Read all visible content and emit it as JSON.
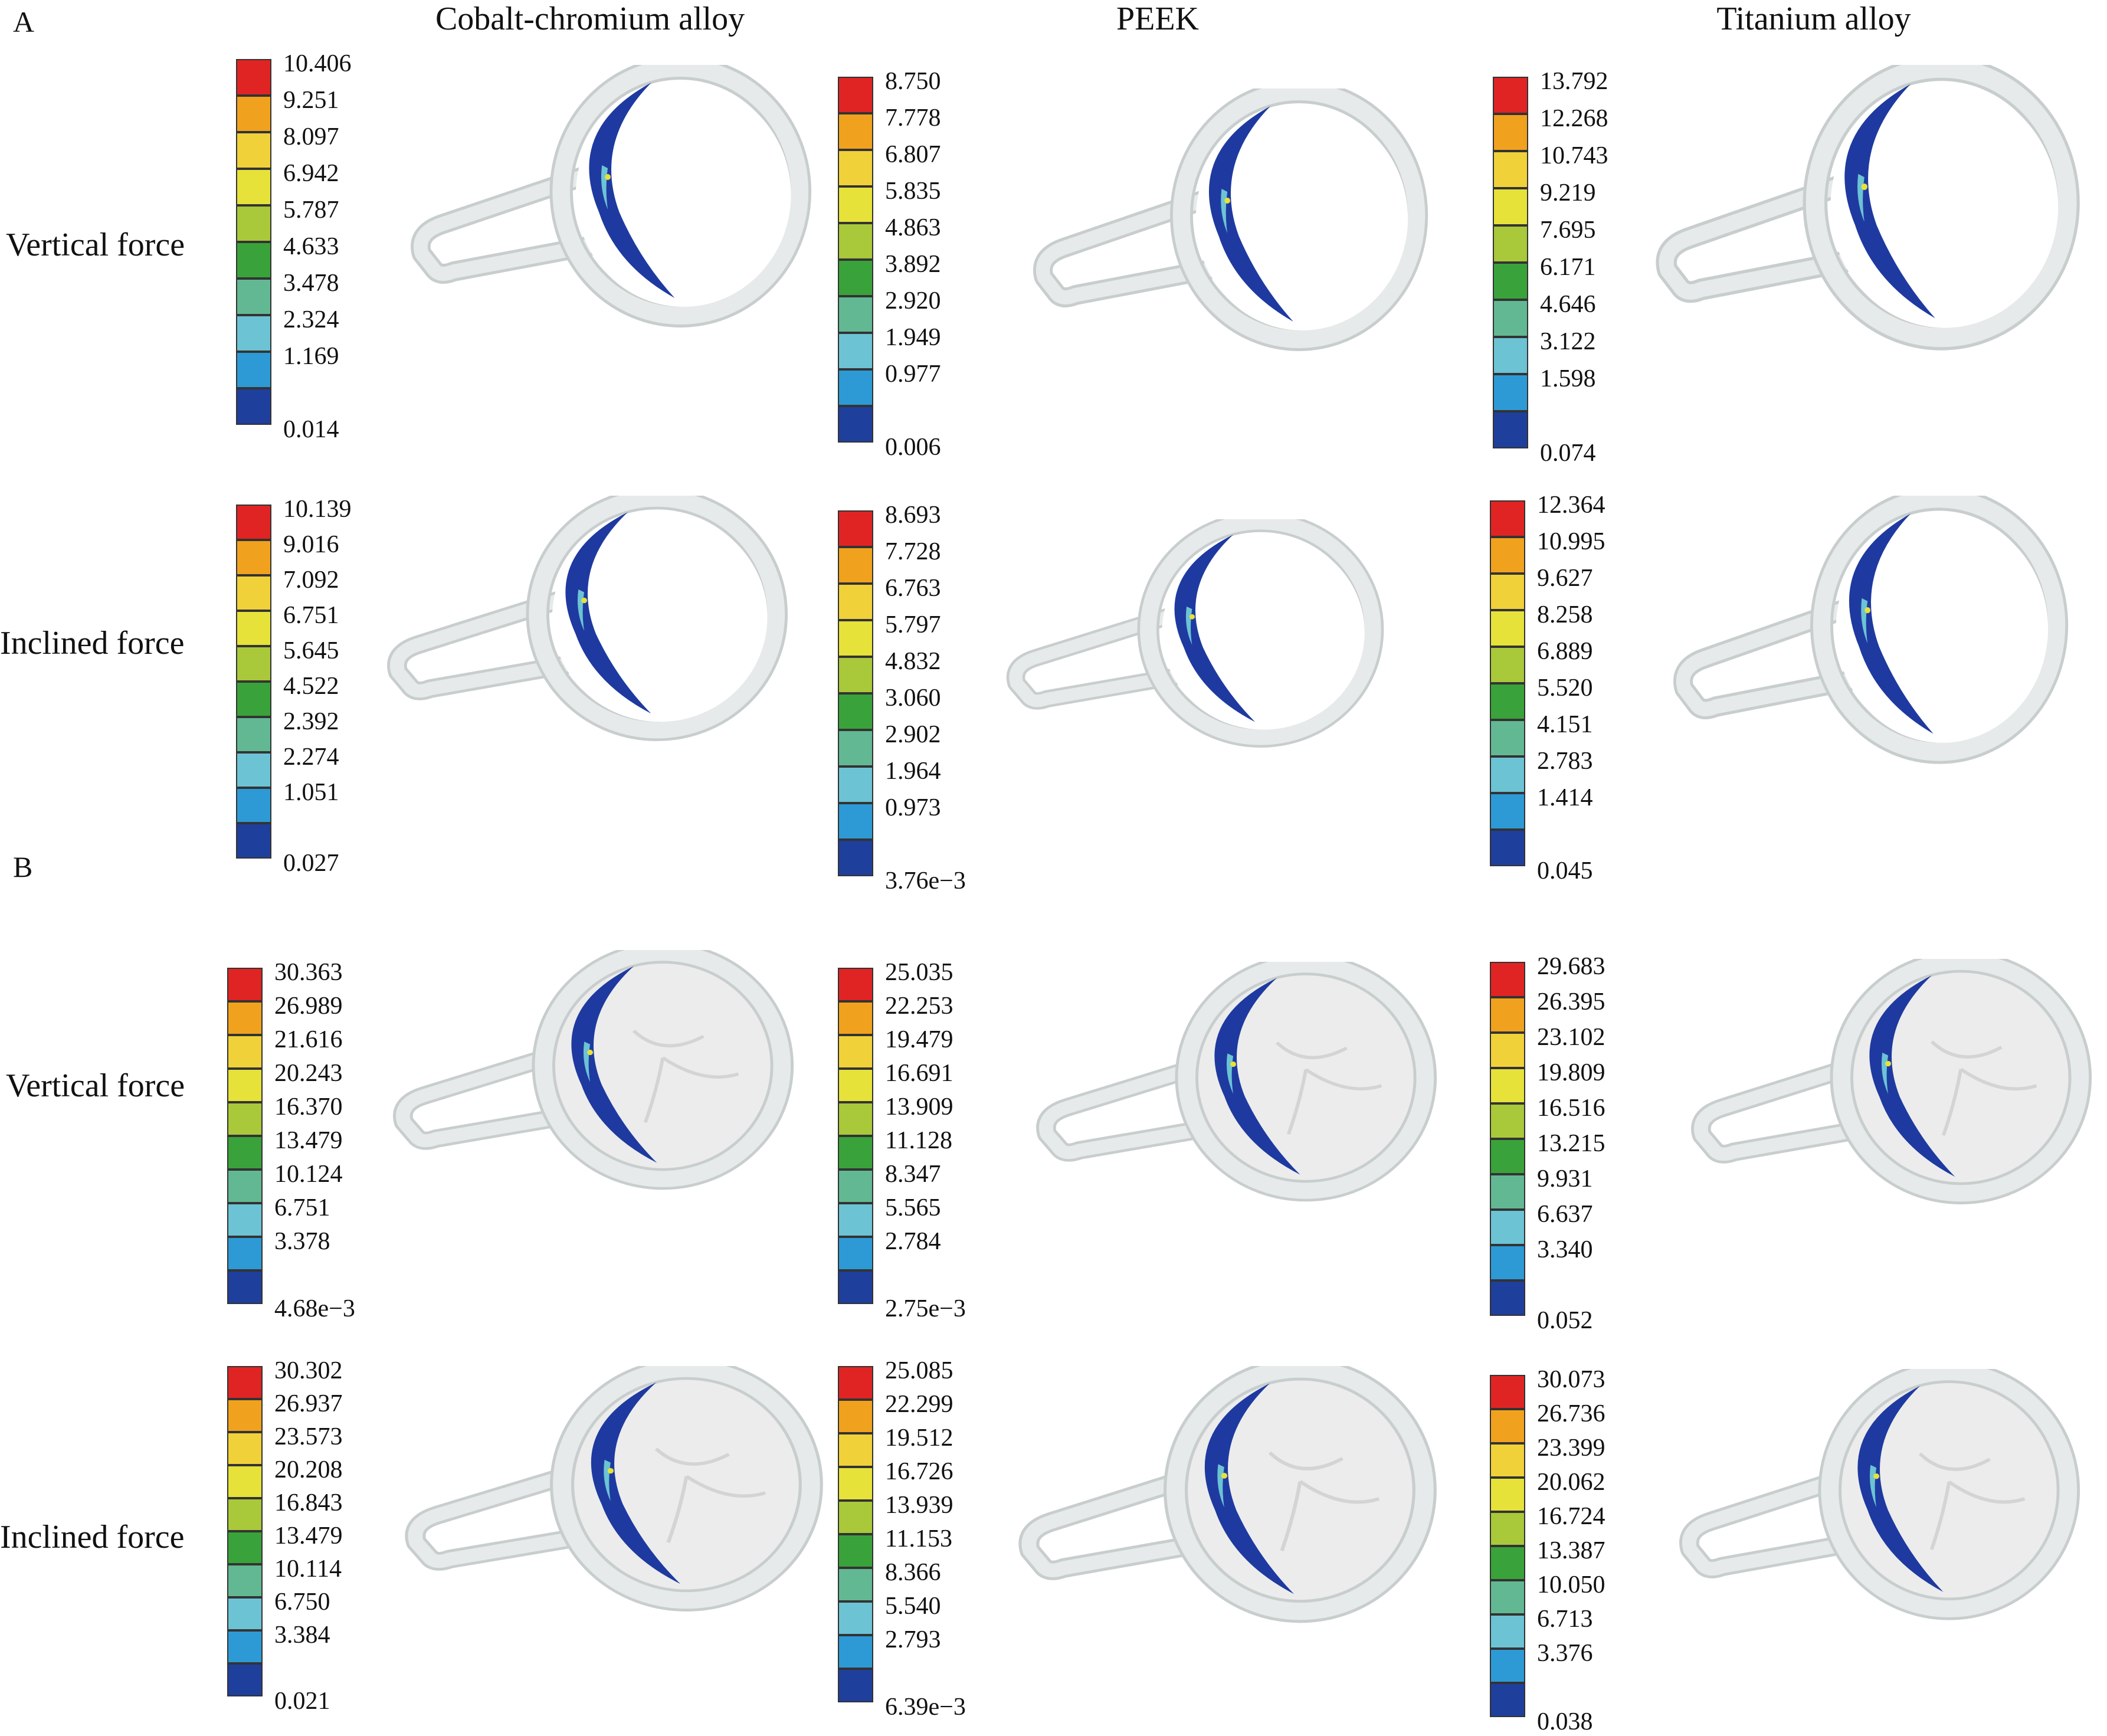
{
  "panels": [
    {
      "letter": "A"
    },
    {
      "letter": "B"
    }
  ],
  "columns": [
    "Cobalt-chromium alloy",
    "PEEK",
    "Titanium alloy"
  ],
  "row_labels": [
    "Vertical force",
    "Inclined force",
    "Vertical force",
    "Inclined force"
  ],
  "colors": {
    "scale": [
      "#1f3f9c",
      "#2d9ad6",
      "#6cc3d4",
      "#62b893",
      "#3aa23a",
      "#a9c83a",
      "#e6e23a",
      "#f0d13a",
      "#f0a21e",
      "#e02424"
    ],
    "ring": "#e6eaea",
    "ring_edge": "#c8cdcd",
    "crown": "#ececec",
    "stress_low": "#1e3aa0"
  },
  "legends": [
    [
      "10.406",
      "9.251",
      "8.097",
      "6.942",
      "5.787",
      "4.633",
      "3.478",
      "2.324",
      "1.169",
      "0.014"
    ],
    [
      "8.750",
      "7.778",
      "6.807",
      "5.835",
      "4.863",
      "3.892",
      "2.920",
      "1.949",
      "0.977",
      "0.006"
    ],
    [
      "13.792",
      "12.268",
      "10.743",
      "9.219",
      "7.695",
      "6.171",
      "4.646",
      "3.122",
      "1.598",
      "0.074"
    ],
    [
      "10.139",
      "9.016",
      "7.092",
      "6.751",
      "5.645",
      "4.522",
      "2.392",
      "2.274",
      "1.051",
      "0.027"
    ],
    [
      "8.693",
      "7.728",
      "6.763",
      "5.797",
      "4.832",
      "3.060",
      "2.902",
      "1.964",
      "0.973",
      "3.76e−3"
    ],
    [
      "12.364",
      "10.995",
      "9.627",
      "8.258",
      "6.889",
      "5.520",
      "4.151",
      "2.783",
      "1.414",
      "0.045"
    ],
    [
      "30.363",
      "26.989",
      "21.616",
      "20.243",
      "16.370",
      "13.479",
      "10.124",
      "6.751",
      "3.378",
      "4.68e−3"
    ],
    [
      "25.035",
      "22.253",
      "19.479",
      "16.691",
      "13.909",
      "11.128",
      "8.347",
      "5.565",
      "2.784",
      "2.75e−3"
    ],
    [
      "29.683",
      "26.395",
      "23.102",
      "19.809",
      "16.516",
      "13.215",
      "9.931",
      "6.637",
      "3.340",
      "0.052"
    ],
    [
      "30.302",
      "26.937",
      "23.573",
      "20.208",
      "16.843",
      "13.479",
      "10.114",
      "6.750",
      "3.384",
      "0.021"
    ],
    [
      "25.085",
      "22.299",
      "19.512",
      "16.726",
      "13.939",
      "11.153",
      "8.366",
      "5.540",
      "2.793",
      "6.39e−3"
    ],
    [
      "30.073",
      "26.736",
      "23.399",
      "20.062",
      "16.724",
      "13.387",
      "10.050",
      "6.713",
      "3.376",
      "0.038"
    ]
  ]
}
